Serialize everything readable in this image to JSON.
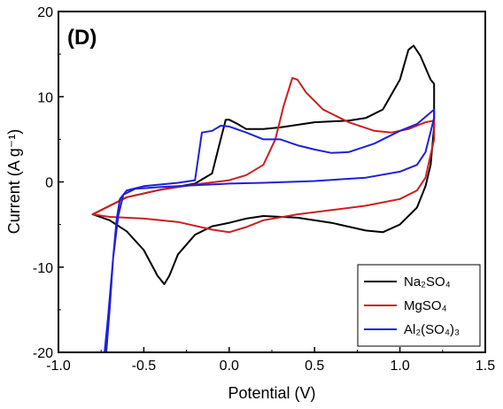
{
  "panel_label": "(D)",
  "chart_data": {
    "type": "line",
    "xlabel": "Potential (V)",
    "ylabel": "Current (A g⁻¹)",
    "xlim": [
      -1.0,
      1.5
    ],
    "ylim": [
      -20,
      20
    ],
    "xticks": [
      -1.0,
      -0.5,
      0.0,
      0.5,
      1.0,
      1.5
    ],
    "xtick_labels": [
      "-1.0",
      "-0.5",
      "0.0",
      "0.5",
      "1.0",
      "1.5"
    ],
    "yticks": [
      -20,
      -10,
      0,
      10,
      20
    ],
    "ytick_labels": [
      "-20",
      "-10",
      "0",
      "10",
      "20"
    ],
    "grid": false,
    "legend_position": "bottom-right",
    "series": [
      {
        "name": "Na₂SO₄",
        "color": "#000000",
        "points": [
          [
            -0.8,
            -3.8
          ],
          [
            -0.6,
            -1.8
          ],
          [
            -0.4,
            -0.9
          ],
          [
            -0.2,
            -0.2
          ],
          [
            -0.1,
            1.0
          ],
          [
            -0.05,
            5.0
          ],
          [
            -0.02,
            7.3
          ],
          [
            0.0,
            7.3
          ],
          [
            0.05,
            6.8
          ],
          [
            0.1,
            6.2
          ],
          [
            0.2,
            6.2
          ],
          [
            0.3,
            6.4
          ],
          [
            0.5,
            7.0
          ],
          [
            0.7,
            7.2
          ],
          [
            0.8,
            7.5
          ],
          [
            0.9,
            8.5
          ],
          [
            1.0,
            12.0
          ],
          [
            1.05,
            15.5
          ],
          [
            1.08,
            16.0
          ],
          [
            1.12,
            14.8
          ],
          [
            1.18,
            12.0
          ],
          [
            1.2,
            11.5
          ],
          [
            1.2,
            6.5
          ],
          [
            1.18,
            2.0
          ],
          [
            1.15,
            -0.5
          ],
          [
            1.1,
            -3.0
          ],
          [
            1.0,
            -5.0
          ],
          [
            0.9,
            -5.9
          ],
          [
            0.8,
            -5.7
          ],
          [
            0.6,
            -4.8
          ],
          [
            0.4,
            -4.2
          ],
          [
            0.2,
            -4.0
          ],
          [
            0.1,
            -4.3
          ],
          [
            0.0,
            -4.8
          ],
          [
            -0.1,
            -5.2
          ],
          [
            -0.2,
            -6.2
          ],
          [
            -0.3,
            -8.5
          ],
          [
            -0.35,
            -11.0
          ],
          [
            -0.38,
            -12.0
          ],
          [
            -0.42,
            -11.0
          ],
          [
            -0.5,
            -8.0
          ],
          [
            -0.6,
            -5.8
          ],
          [
            -0.7,
            -4.5
          ],
          [
            -0.8,
            -3.8
          ]
        ]
      },
      {
        "name": "MgSO₄",
        "color": "#cc1f1f",
        "points": [
          [
            -0.8,
            -3.8
          ],
          [
            -0.6,
            -1.8
          ],
          [
            -0.4,
            -0.9
          ],
          [
            -0.2,
            -0.3
          ],
          [
            0.0,
            0.2
          ],
          [
            0.1,
            0.8
          ],
          [
            0.2,
            2.0
          ],
          [
            0.27,
            5.0
          ],
          [
            0.32,
            9.0
          ],
          [
            0.37,
            12.2
          ],
          [
            0.4,
            12.0
          ],
          [
            0.45,
            10.5
          ],
          [
            0.55,
            8.5
          ],
          [
            0.7,
            7.0
          ],
          [
            0.85,
            6.0
          ],
          [
            0.95,
            5.8
          ],
          [
            1.05,
            6.2
          ],
          [
            1.15,
            7.0
          ],
          [
            1.2,
            7.2
          ],
          [
            1.2,
            5.0
          ],
          [
            1.15,
            0.5
          ],
          [
            1.1,
            -1.0
          ],
          [
            1.0,
            -2.0
          ],
          [
            0.8,
            -2.8
          ],
          [
            0.6,
            -3.3
          ],
          [
            0.4,
            -3.8
          ],
          [
            0.2,
            -4.5
          ],
          [
            0.1,
            -5.3
          ],
          [
            0.0,
            -5.9
          ],
          [
            -0.1,
            -5.6
          ],
          [
            -0.3,
            -4.7
          ],
          [
            -0.5,
            -4.3
          ],
          [
            -0.7,
            -4.1
          ],
          [
            -0.8,
            -3.8
          ]
        ]
      },
      {
        "name": "Al₂(SO₄)₃",
        "color": "#1f1fdd",
        "points": [
          [
            -0.72,
            -20.0
          ],
          [
            -0.7,
            -15.0
          ],
          [
            -0.68,
            -9.0
          ],
          [
            -0.66,
            -4.5
          ],
          [
            -0.64,
            -2.0
          ],
          [
            -0.6,
            -1.0
          ],
          [
            -0.5,
            -0.5
          ],
          [
            -0.3,
            -0.1
          ],
          [
            -0.2,
            0.2
          ],
          [
            -0.18,
            3.0
          ],
          [
            -0.16,
            5.8
          ],
          [
            -0.1,
            6.0
          ],
          [
            -0.05,
            6.6
          ],
          [
            0.0,
            6.5
          ],
          [
            0.1,
            5.8
          ],
          [
            0.2,
            5.0
          ],
          [
            0.3,
            5.0
          ],
          [
            0.4,
            4.3
          ],
          [
            0.5,
            3.8
          ],
          [
            0.6,
            3.4
          ],
          [
            0.7,
            3.5
          ],
          [
            0.85,
            4.5
          ],
          [
            1.0,
            6.0
          ],
          [
            1.1,
            6.8
          ],
          [
            1.2,
            8.5
          ],
          [
            1.2,
            7.5
          ],
          [
            1.15,
            3.5
          ],
          [
            1.1,
            2.0
          ],
          [
            1.0,
            1.2
          ],
          [
            0.8,
            0.5
          ],
          [
            0.5,
            0.1
          ],
          [
            0.2,
            -0.1
          ],
          [
            0.0,
            -0.2
          ],
          [
            -0.2,
            -0.4
          ],
          [
            -0.4,
            -0.6
          ],
          [
            -0.55,
            -0.8
          ],
          [
            -0.62,
            -1.5
          ],
          [
            -0.65,
            -4.0
          ],
          [
            -0.68,
            -9.0
          ],
          [
            -0.71,
            -16.0
          ],
          [
            -0.73,
            -20.0
          ]
        ]
      }
    ]
  }
}
